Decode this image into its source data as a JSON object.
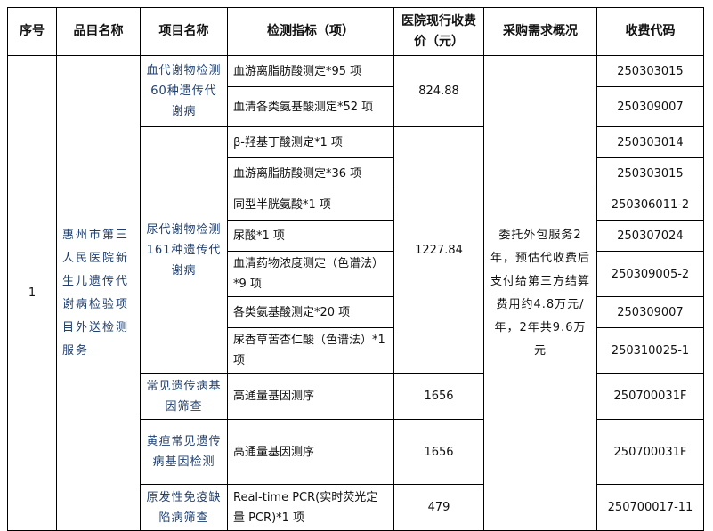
{
  "headers": [
    "序号",
    "品目名称",
    "项目名称",
    "检测指标（项）",
    "医院现行收费价（元）",
    "采购需求概况",
    "收费代码"
  ],
  "seq": "1",
  "category": "惠州市第三人民医院新生儿遗传代谢病检验项目外送检测服务",
  "summary": "委托外包服务2年，预估代收费后支付给第三方结算费用约4.8万元/年，2年共9.6万元",
  "projects": [
    {
      "name": "血代谢物检测60种遗传代谢病",
      "price": "824.88",
      "items": [
        {
          "indicator": "血游离脂肪酸测定*95 项",
          "code": "250303015"
        },
        {
          "indicator": "血清各类氨基酸测定*52 项",
          "code": "250309007"
        }
      ]
    },
    {
      "name": "尿代谢物检测161种遗传代谢病",
      "price": "1227.84",
      "items": [
        {
          "indicator": "β-羟基丁酸测定*1 项",
          "code": "250303014"
        },
        {
          "indicator": "血游离脂肪酸测定*36 项",
          "code": "250303015"
        },
        {
          "indicator": "同型半胱氨酸*1 项",
          "code": "250306011-2"
        },
        {
          "indicator": "尿酸*1 项",
          "code": "250307024"
        },
        {
          "indicator": "血清药物浓度测定（色谱法）*9 项",
          "code": "250309005-2"
        },
        {
          "indicator": "各类氨基酸测定*20 项",
          "code": "250309007"
        },
        {
          "indicator": "尿香草苦杏仁酸（色谱法）*1 项",
          "code": "250310025-1"
        }
      ]
    },
    {
      "name": "常见遗传病基因筛查",
      "price": "1656",
      "items": [
        {
          "indicator": "高通量基因测序",
          "code": "250700031F"
        }
      ]
    },
    {
      "name": "黄疸常见遗传病基因检测",
      "price": "1656",
      "items": [
        {
          "indicator": "高通量基因测序",
          "code": "250700031F"
        }
      ]
    },
    {
      "name": "原发性免疫缺陷病筛查",
      "price": "479",
      "items": [
        {
          "indicator": "Real-time PCR(实时荧光定量 PCR)*1 项",
          "code": "250700017-11"
        }
      ]
    }
  ]
}
